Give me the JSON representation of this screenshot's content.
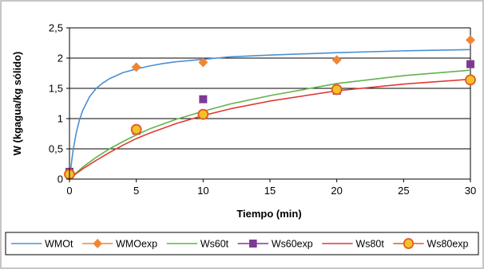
{
  "chart_data": {
    "type": "line",
    "xlabel": "Tiempo (min)",
    "ylabel": "W (kgagua/kg sólido)",
    "xlim": [
      0,
      30
    ],
    "ylim": [
      0,
      2.5
    ],
    "x_ticks": [
      0,
      5,
      10,
      15,
      20,
      25,
      30
    ],
    "x_tick_labels": [
      "0",
      "5",
      "10",
      "15",
      "20",
      "25",
      "30"
    ],
    "y_ticks": [
      0,
      0.5,
      1,
      1.5,
      2,
      2.5
    ],
    "y_tick_labels": [
      "0",
      "0,5",
      "1",
      "1,5",
      "2",
      "2,5"
    ],
    "grid": "horizontal",
    "legend_position": "bottom",
    "series": [
      {
        "name": "WMOt",
        "kind": "line",
        "color": "#4a90d0",
        "x": [
          0,
          0.25,
          0.5,
          0.75,
          1,
          1.5,
          2,
          2.5,
          3,
          4,
          5,
          6,
          7,
          8,
          10,
          12,
          15,
          20,
          25,
          30
        ],
        "y": [
          0,
          0.45,
          0.76,
          0.98,
          1.14,
          1.36,
          1.5,
          1.59,
          1.66,
          1.76,
          1.82,
          1.87,
          1.91,
          1.94,
          1.98,
          2.02,
          2.05,
          2.09,
          2.12,
          2.14
        ]
      },
      {
        "name": "WMOexp",
        "kind": "marker",
        "marker": "diamond",
        "color": "#ef8636",
        "x": [
          0,
          5,
          10,
          20,
          30
        ],
        "y": [
          0.08,
          1.85,
          1.93,
          1.97,
          2.3
        ]
      },
      {
        "name": "Ws60t",
        "kind": "line",
        "color": "#62b34a",
        "x": [
          0,
          0.5,
          1,
          2,
          3,
          4,
          5,
          6,
          8,
          10,
          12,
          15,
          20,
          25,
          30
        ],
        "y": [
          0,
          0.1,
          0.2,
          0.36,
          0.5,
          0.62,
          0.73,
          0.83,
          0.99,
          1.12,
          1.24,
          1.38,
          1.58,
          1.71,
          1.8
        ]
      },
      {
        "name": "Ws60exp",
        "kind": "marker",
        "marker": "square",
        "color": "#7d3a95",
        "x": [
          0,
          5,
          10,
          20,
          30
        ],
        "y": [
          0.12,
          0.8,
          1.32,
          1.46,
          1.9
        ]
      },
      {
        "name": "Ws80t",
        "kind": "line",
        "color": "#e03a34",
        "x": [
          0,
          0.5,
          1,
          2,
          3,
          4,
          5,
          6,
          8,
          10,
          12,
          15,
          20,
          25,
          30
        ],
        "y": [
          0,
          0.09,
          0.17,
          0.31,
          0.44,
          0.56,
          0.67,
          0.76,
          0.92,
          1.05,
          1.16,
          1.29,
          1.46,
          1.57,
          1.65
        ]
      },
      {
        "name": "Ws80exp",
        "kind": "marker",
        "marker": "circle",
        "color": "#f3c12b",
        "edge_color": "#e45a1c",
        "x": [
          0,
          5,
          10,
          20,
          30
        ],
        "y": [
          0.08,
          0.82,
          1.07,
          1.48,
          1.64
        ]
      }
    ]
  }
}
